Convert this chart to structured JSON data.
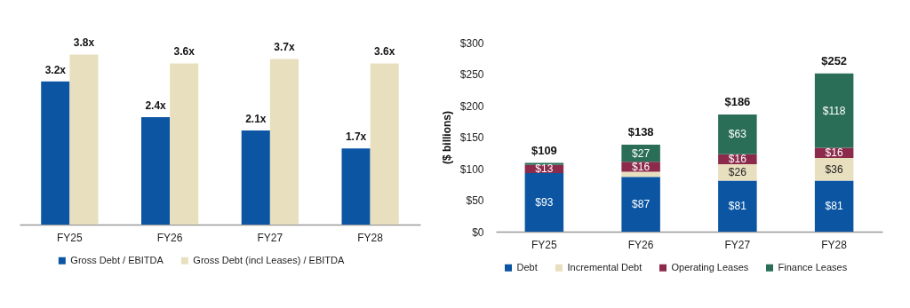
{
  "chart_data": [
    {
      "type": "bar",
      "categories": [
        "FY25",
        "FY26",
        "FY27",
        "FY28"
      ],
      "tick_labels": "x",
      "legend": "bottom",
      "series": [
        {
          "name": "Gross Debt / EBITDA",
          "color": "#0b55a3",
          "values": [
            3.2,
            2.4,
            2.1,
            1.7
          ],
          "value_labels": [
            "3.2x",
            "2.4x",
            "2.1x",
            "1.7x"
          ]
        },
        {
          "name": "Gross Debt (incl Leases) / EBITDA",
          "color": "#e8dfbf",
          "values": [
            3.8,
            3.6,
            3.7,
            3.6
          ],
          "value_labels": [
            "3.8x",
            "3.6x",
            "3.7x",
            "3.6x"
          ]
        }
      ]
    },
    {
      "type": "bar",
      "stacked": true,
      "categories": [
        "FY25",
        "FY26",
        "FY27",
        "FY28"
      ],
      "ylabel": "($ billions)",
      "ylim": [
        0,
        300
      ],
      "yticks": [
        {
          "value": 0,
          "label": "$0"
        },
        {
          "value": 50,
          "label": "$50"
        },
        {
          "value": 100,
          "label": "$100"
        },
        {
          "value": 150,
          "label": "$150"
        },
        {
          "value": 200,
          "label": "$200"
        },
        {
          "value": 250,
          "label": "$250"
        },
        {
          "value": 300,
          "label": "$300"
        }
      ],
      "legend": "bottom",
      "totals": [
        "$109",
        "$138",
        "$186",
        "$252"
      ],
      "series": [
        {
          "name": "Debt",
          "color": "#0b55a3",
          "values": [
            93,
            87,
            81,
            81
          ],
          "value_labels": [
            "$93",
            "$87",
            "$81",
            "$81"
          ]
        },
        {
          "name": "Incremental Debt",
          "color": "#e8dfbf",
          "values": [
            null,
            8,
            26,
            36
          ],
          "value_labels": [
            null,
            null,
            "$26",
            "$36"
          ]
        },
        {
          "name": "Operating Leases",
          "color": "#8c2a4b",
          "values": [
            13,
            16,
            16,
            16
          ],
          "value_labels": [
            "$13",
            "$16",
            "$16",
            "$16"
          ]
        },
        {
          "name": "Finance Leases",
          "color": "#2a6e58",
          "values": [
            3,
            27,
            63,
            118
          ],
          "value_labels": [
            null,
            "$27",
            "$63",
            "$118"
          ]
        }
      ]
    }
  ]
}
